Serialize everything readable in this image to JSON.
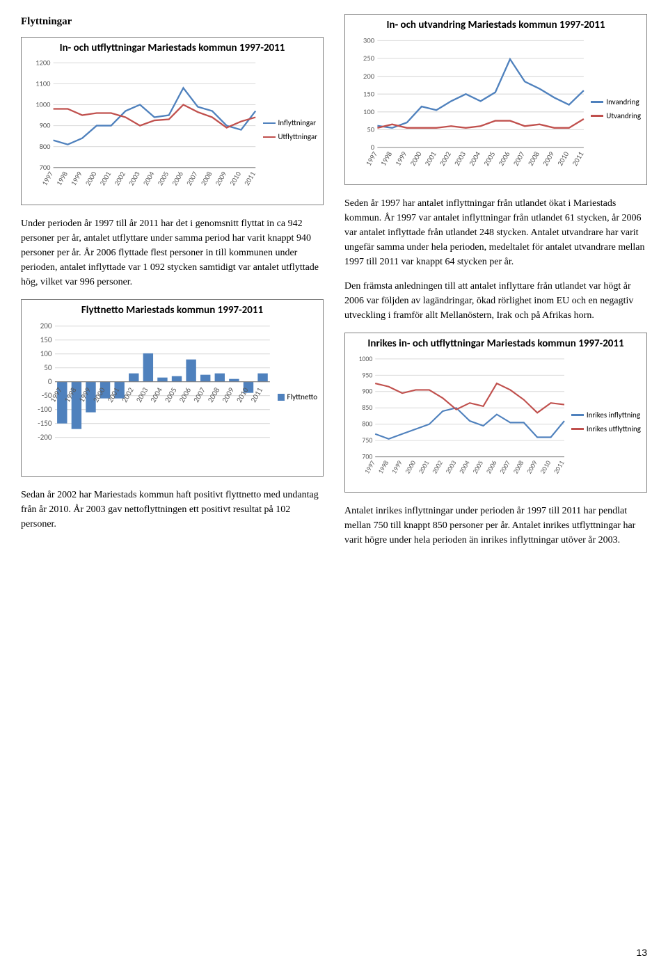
{
  "heading": "Flyttningar",
  "page_number": "13",
  "colors": {
    "blue": "#4f81bd",
    "red": "#c0504d",
    "grid": "#d9d9d9",
    "axis": "#808080",
    "text": "#595959"
  },
  "chart1": {
    "title": "In- och utflyttningar Mariestads kommun 1997-2011",
    "type": "line",
    "years": [
      1997,
      1998,
      1999,
      2000,
      2001,
      2002,
      2003,
      2004,
      2005,
      2006,
      2007,
      2008,
      2009,
      2010,
      2011
    ],
    "ymin": 700,
    "ymax": 1200,
    "ytick_step": 100,
    "series": [
      {
        "name": "Inflyttningar",
        "color": "#4f81bd",
        "values": [
          830,
          810,
          840,
          900,
          900,
          970,
          1000,
          940,
          950,
          1080,
          990,
          970,
          900,
          880,
          970
        ]
      },
      {
        "name": "Utflyttningar",
        "color": "#c0504d",
        "values": [
          980,
          980,
          950,
          960,
          960,
          940,
          900,
          925,
          930,
          1000,
          965,
          940,
          890,
          920,
          940
        ]
      }
    ]
  },
  "chart2": {
    "title": "In- och utvandring Mariestads kommun 1997-2011",
    "type": "line",
    "years": [
      1997,
      1998,
      1999,
      2000,
      2001,
      2002,
      2003,
      2004,
      2005,
      2006,
      2007,
      2008,
      2009,
      2010,
      2011
    ],
    "ymin": 0,
    "ymax": 300,
    "ytick_step": 50,
    "series": [
      {
        "name": "Invandring",
        "color": "#4f81bd",
        "values": [
          61,
          55,
          70,
          115,
          105,
          130,
          150,
          130,
          155,
          248,
          185,
          165,
          140,
          120,
          160
        ]
      },
      {
        "name": "Utvandring",
        "color": "#c0504d",
        "values": [
          55,
          65,
          55,
          55,
          55,
          60,
          55,
          60,
          75,
          75,
          60,
          65,
          55,
          55,
          80
        ]
      }
    ]
  },
  "chart3": {
    "title": "Flyttnetto Mariestads kommun 1997-2011",
    "type": "bar",
    "years": [
      1997,
      1998,
      1999,
      2000,
      2001,
      2002,
      2003,
      2004,
      2005,
      2006,
      2007,
      2008,
      2009,
      2010,
      2011
    ],
    "ymin": -200,
    "ymax": 200,
    "ytick_step": 50,
    "values": [
      -150,
      -170,
      -110,
      -60,
      -60,
      30,
      102,
      15,
      20,
      80,
      25,
      30,
      10,
      -40,
      30
    ],
    "bar_color": "#4f81bd",
    "legend": "Flyttnetto"
  },
  "chart4": {
    "title": "Inrikes in- och utflyttningar Mariestads kommun 1997-2011",
    "type": "line",
    "years": [
      1997,
      1998,
      1999,
      2000,
      2001,
      2002,
      2003,
      2004,
      2005,
      2006,
      2007,
      2008,
      2009,
      2010,
      2011
    ],
    "ymin": 700,
    "ymax": 1000,
    "ytick_step": 50,
    "series": [
      {
        "name": "Inrikes inflyttning",
        "color": "#4f81bd",
        "values": [
          770,
          755,
          770,
          785,
          800,
          840,
          850,
          810,
          795,
          830,
          805,
          805,
          760,
          760,
          810
        ]
      },
      {
        "name": "Inrikes utflyttning",
        "color": "#c0504d",
        "values": [
          925,
          915,
          895,
          905,
          905,
          880,
          845,
          865,
          855,
          925,
          905,
          875,
          835,
          865,
          860
        ]
      }
    ]
  },
  "para1": "Under perioden år 1997 till år 2011 har det i genomsnitt flyttat in ca 942 personer per år, antalet utflyttare under samma period har varit knappt 940 personer per år. År 2006 flyttade flest personer in till kommunen under perioden, antalet inflyttade var 1 092 stycken samtidigt var antalet utflyttade hög, vilket var 996 personer.",
  "para2": "Sedan år 2002 har Mariestads kommun haft positivt flyttnetto med undantag från år 2010. År 2003 gav nettoflyttningen ett positivt resultat på 102 personer.",
  "para3": "Seden år 1997 har antalet inflyttningar från utlandet ökat i Mariestads kommun. År 1997 var antalet inflyttningar från utlandet 61 stycken, år 2006 var antalet inflyttade från utlandet 248 stycken. Antalet utvandrare har varit ungefär samma under hela perioden, medeltalet för antalet utvandrare mellan 1997 till 2011 var knappt 64 stycken per år.",
  "para4": "Den främsta anledningen till att antalet inflyttare från utlandet var högt år 2006 var följden av lagändringar, ökad rörlighet inom EU och en negagtiv utveckling i framför allt Mellanöstern, Irak och på Afrikas horn.",
  "para5": "Antalet inrikes inflyttningar under perioden år 1997 till 2011 har pendlat mellan 750 till knappt 850 personer per år. Antalet inrikes utflyttningar har varit högre under hela perioden än inrikes inflyttningar utöver år 2003."
}
